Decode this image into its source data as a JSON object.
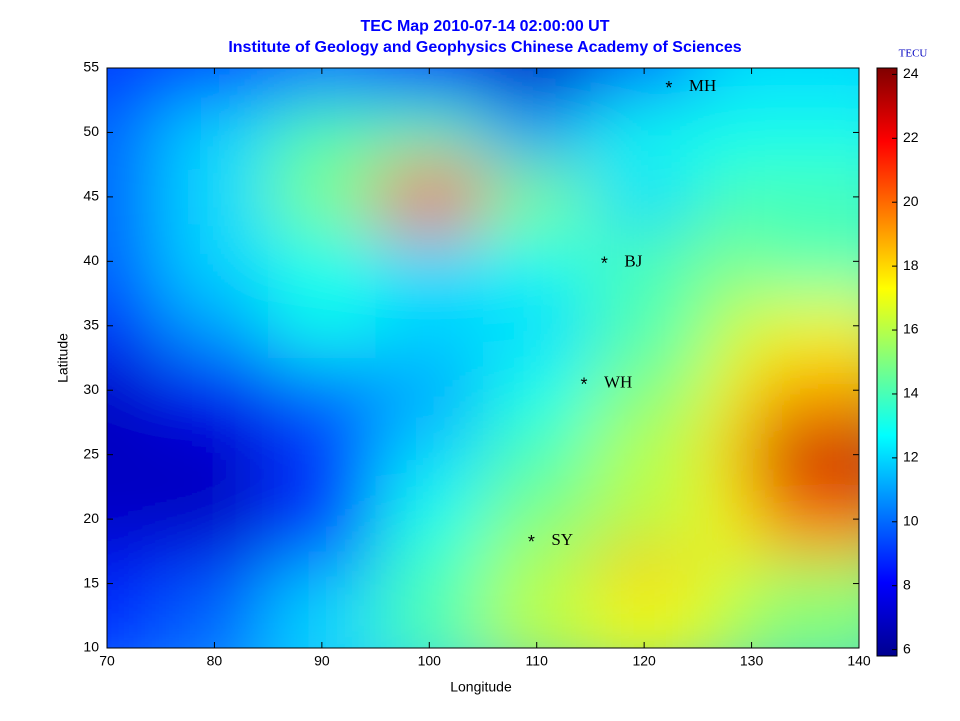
{
  "chart_data": {
    "type": "heatmap",
    "title": "TEC Map 2010-07-14 02:00:00 UT",
    "subtitle": "Institute of Geology and Geophysics Chinese Academy of Sciences",
    "x_label": "Longitude",
    "y_label": "Latitude",
    "xlim": [
      70,
      140
    ],
    "xticks": [
      70,
      80,
      90,
      100,
      110,
      120,
      130,
      140
    ],
    "ylim": [
      10,
      55
    ],
    "yticks": [
      10,
      15,
      20,
      25,
      30,
      35,
      40,
      45,
      50,
      55
    ],
    "lon": [
      70,
      80,
      90,
      100,
      110,
      120,
      130,
      140
    ],
    "lat": [
      55,
      50,
      45,
      40,
      35,
      30,
      25,
      20,
      15,
      10
    ],
    "z": [
      [
        9,
        9,
        10,
        8,
        7,
        10,
        12,
        12
      ],
      [
        10,
        12,
        14,
        14,
        11,
        13,
        13,
        13
      ],
      [
        10,
        12,
        15,
        21,
        15,
        12,
        14,
        14
      ],
      [
        10,
        12,
        13,
        12,
        13,
        14,
        15,
        14
      ],
      [
        9,
        11,
        13,
        12,
        12,
        14,
        16,
        17
      ],
      [
        7,
        8,
        10,
        11,
        13,
        15,
        17,
        19
      ],
      [
        7,
        7,
        9,
        12,
        14,
        16,
        18,
        23
      ],
      [
        7,
        7,
        9,
        13,
        15,
        16,
        17,
        20
      ],
      [
        8,
        9,
        11,
        14,
        16,
        19,
        17,
        16
      ],
      [
        9,
        10,
        12,
        14,
        16,
        17,
        16,
        15
      ]
    ],
    "colorbar_label": "TECU",
    "clim": [
      5.8,
      24.2
    ],
    "colorbar_ticks": [
      6,
      8,
      10,
      12,
      14,
      16,
      18,
      20,
      22,
      24
    ],
    "colormap": "jet",
    "stations": [
      {
        "name": "MH",
        "lon": 122.3,
        "lat": 53.5
      },
      {
        "name": "BJ",
        "lon": 116.3,
        "lat": 39.9
      },
      {
        "name": "WH",
        "lon": 114.4,
        "lat": 30.5
      },
      {
        "name": "SY",
        "lon": 109.5,
        "lat": 18.3
      }
    ]
  }
}
